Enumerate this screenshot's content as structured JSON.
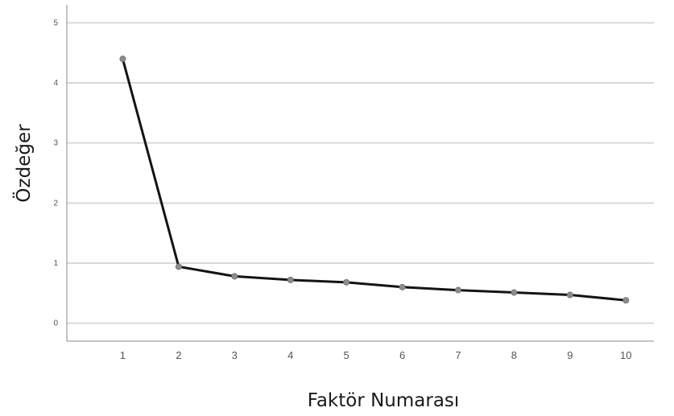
{
  "chart_data": {
    "type": "line",
    "xlabel": "Faktör Numarası",
    "ylabel": "Özdeğer",
    "x": [
      1,
      2,
      3,
      4,
      5,
      6,
      7,
      8,
      9,
      10
    ],
    "series": [
      {
        "values": [
          4.4,
          0.94,
          0.78,
          0.72,
          0.68,
          0.6,
          0.55,
          0.51,
          0.47,
          0.38
        ]
      }
    ],
    "xticks": [
      "1",
      "2",
      "3",
      "4",
      "5",
      "6",
      "7",
      "8",
      "9",
      "10"
    ],
    "yticks": [
      "0",
      "1",
      "2",
      "3",
      "4",
      "5"
    ],
    "xlim": [
      0,
      10.5
    ],
    "ylim": [
      -0.3,
      5.3
    ],
    "grid": "horizontal",
    "legend": "none",
    "colors": {
      "line": "#141414",
      "marker": "#8c8c8c",
      "grid": "#d9d9d9",
      "axis": "#8a8a8a"
    }
  }
}
